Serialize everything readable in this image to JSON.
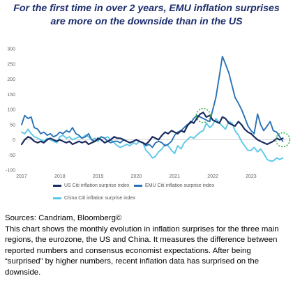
{
  "title_line1": "For the first time in over 2 years, EMU inflation surprises",
  "title_line2": "are more on the downside than in the US",
  "source_label": "Sources: Candriam, Bloomberg©",
  "description": "This chart shows the monthly evolution in inflation surprises for the three main regions, the eurozone, the US and China. It measures the difference between reported numbers and consensus economist expectations. After being “surprised” by higher numbers, recent inflation data has surprised on the downside.",
  "colors": {
    "us": "#1a2b5e",
    "emu": "#2a72b5",
    "china": "#5cc8e8",
    "highlight": "#3cb44b",
    "zero_line": "#b0b0b0"
  },
  "chart_data": {
    "type": "line",
    "ylim": [
      -100,
      300
    ],
    "yticks": [
      "300",
      "250",
      "200",
      "150",
      "100",
      "50",
      "0",
      "-50",
      "-100"
    ],
    "ytick_values": [
      300,
      250,
      200,
      150,
      100,
      50,
      0,
      -50,
      -100
    ],
    "xlim": [
      2017.0,
      2023.95
    ],
    "xticks": [
      "2017",
      "2018",
      "2019",
      "2020",
      "2021",
      "2022",
      "2023"
    ],
    "xtick_values": [
      2017,
      2018,
      2019,
      2020,
      2021,
      2022,
      2023
    ],
    "series": [
      {
        "key": "us",
        "name": "US Citi inflation surprise index",
        "x": [
          2017.0,
          2017.08,
          2017.17,
          2017.25,
          2017.33,
          2017.42,
          2017.5,
          2017.58,
          2017.67,
          2017.75,
          2017.83,
          2017.92,
          2018.0,
          2018.08,
          2018.17,
          2018.25,
          2018.33,
          2018.42,
          2018.5,
          2018.58,
          2018.67,
          2018.75,
          2018.83,
          2018.92,
          2019.0,
          2019.08,
          2019.17,
          2019.25,
          2019.33,
          2019.42,
          2019.5,
          2019.58,
          2019.67,
          2019.75,
          2019.83,
          2019.92,
          2020.0,
          2020.08,
          2020.17,
          2020.25,
          2020.33,
          2020.42,
          2020.5,
          2020.58,
          2020.67,
          2020.75,
          2020.83,
          2020.92,
          2021.0,
          2021.08,
          2021.17,
          2021.25,
          2021.33,
          2021.42,
          2021.5,
          2021.58,
          2021.67,
          2021.75,
          2021.83,
          2021.92,
          2022.0,
          2022.08,
          2022.17,
          2022.25,
          2022.33,
          2022.42,
          2022.5,
          2022.58,
          2022.67,
          2022.75,
          2022.83,
          2022.92,
          2023.0,
          2023.08,
          2023.17,
          2023.25,
          2023.33,
          2023.42,
          2023.5,
          2023.58,
          2023.67,
          2023.75,
          2023.83
        ],
        "values": [
          -15,
          0,
          10,
          5,
          -5,
          -10,
          -5,
          -10,
          0,
          5,
          0,
          -5,
          0,
          -5,
          -10,
          -5,
          -15,
          -10,
          -5,
          -10,
          -5,
          -15,
          -10,
          -5,
          5,
          0,
          -10,
          -5,
          0,
          10,
          5,
          5,
          0,
          -5,
          -10,
          -5,
          0,
          -5,
          -10,
          -15,
          -5,
          10,
          5,
          0,
          15,
          25,
          20,
          30,
          25,
          20,
          30,
          25,
          45,
          60,
          55,
          70,
          85,
          90,
          75,
          80,
          65,
          60,
          55,
          75,
          70,
          55,
          50,
          45,
          60,
          50,
          35,
          25,
          20,
          10,
          0,
          -5,
          -10,
          -15,
          -10,
          -5,
          5,
          0,
          5
        ]
      },
      {
        "key": "emu",
        "name": "EMU Citi inflation surprise index",
        "x": [
          2017.0,
          2017.08,
          2017.17,
          2017.25,
          2017.33,
          2017.42,
          2017.5,
          2017.58,
          2017.67,
          2017.75,
          2017.83,
          2017.92,
          2018.0,
          2018.08,
          2018.17,
          2018.25,
          2018.33,
          2018.42,
          2018.5,
          2018.58,
          2018.67,
          2018.75,
          2018.83,
          2018.92,
          2019.0,
          2019.08,
          2019.17,
          2019.25,
          2019.33,
          2019.42,
          2019.5,
          2019.58,
          2019.67,
          2019.75,
          2019.83,
          2019.92,
          2020.0,
          2020.08,
          2020.17,
          2020.25,
          2020.33,
          2020.42,
          2020.5,
          2020.58,
          2020.67,
          2020.75,
          2020.83,
          2020.92,
          2021.0,
          2021.08,
          2021.17,
          2021.25,
          2021.33,
          2021.42,
          2021.5,
          2021.58,
          2021.67,
          2021.75,
          2021.83,
          2021.92,
          2022.0,
          2022.08,
          2022.17,
          2022.25,
          2022.33,
          2022.42,
          2022.5,
          2022.58,
          2022.67,
          2022.75,
          2022.83,
          2022.92,
          2023.0,
          2023.08,
          2023.17,
          2023.25,
          2023.33,
          2023.42,
          2023.5,
          2023.58,
          2023.67,
          2023.75,
          2023.83
        ],
        "values": [
          50,
          80,
          70,
          75,
          40,
          35,
          20,
          25,
          15,
          20,
          10,
          15,
          25,
          20,
          30,
          25,
          40,
          20,
          15,
          5,
          10,
          20,
          0,
          -5,
          0,
          10,
          5,
          -5,
          -10,
          -5,
          -5,
          -10,
          0,
          -5,
          -10,
          -5,
          0,
          -5,
          -10,
          -20,
          -15,
          -25,
          -10,
          -5,
          -10,
          -20,
          -15,
          -5,
          15,
          25,
          30,
          40,
          50,
          55,
          70,
          80,
          75,
          70,
          65,
          60,
          100,
          140,
          210,
          275,
          250,
          220,
          180,
          140,
          120,
          100,
          75,
          45,
          30,
          20,
          85,
          50,
          30,
          45,
          60,
          30,
          25,
          10,
          -5
        ]
      },
      {
        "key": "china",
        "name": "China Citi inflation surprise index",
        "x": [
          2017.0,
          2017.08,
          2017.17,
          2017.25,
          2017.33,
          2017.42,
          2017.5,
          2017.58,
          2017.67,
          2017.75,
          2017.83,
          2017.92,
          2018.0,
          2018.08,
          2018.17,
          2018.25,
          2018.33,
          2018.42,
          2018.5,
          2018.58,
          2018.67,
          2018.75,
          2018.83,
          2018.92,
          2019.0,
          2019.08,
          2019.17,
          2019.25,
          2019.33,
          2019.42,
          2019.5,
          2019.58,
          2019.67,
          2019.75,
          2019.83,
          2019.92,
          2020.0,
          2020.08,
          2020.17,
          2020.25,
          2020.33,
          2020.42,
          2020.5,
          2020.58,
          2020.67,
          2020.75,
          2020.83,
          2020.92,
          2021.0,
          2021.08,
          2021.17,
          2021.25,
          2021.33,
          2021.42,
          2021.5,
          2021.58,
          2021.67,
          2021.75,
          2021.83,
          2021.92,
          2022.0,
          2022.08,
          2022.17,
          2022.25,
          2022.33,
          2022.42,
          2022.5,
          2022.58,
          2022.67,
          2022.75,
          2022.83,
          2022.92,
          2023.0,
          2023.08,
          2023.17,
          2023.25,
          2023.33,
          2023.42,
          2023.5,
          2023.58,
          2023.67,
          2023.75,
          2023.83
        ],
        "values": [
          25,
          20,
          35,
          20,
          10,
          5,
          0,
          -5,
          5,
          0,
          -5,
          -10,
          10,
          15,
          5,
          10,
          0,
          5,
          10,
          5,
          15,
          10,
          0,
          5,
          -5,
          10,
          5,
          10,
          0,
          -10,
          -20,
          -25,
          -20,
          -15,
          -20,
          -10,
          -15,
          -5,
          -10,
          -35,
          -45,
          -60,
          -55,
          -40,
          -30,
          -15,
          -20,
          -35,
          -45,
          -20,
          -30,
          -10,
          0,
          10,
          5,
          15,
          25,
          30,
          55,
          40,
          50,
          70,
          55,
          45,
          35,
          60,
          55,
          30,
          15,
          -5,
          -20,
          -35,
          -35,
          -25,
          -40,
          -30,
          -45,
          -65,
          -70,
          -70,
          -60,
          -65,
          -60
        ]
      }
    ]
  }
}
